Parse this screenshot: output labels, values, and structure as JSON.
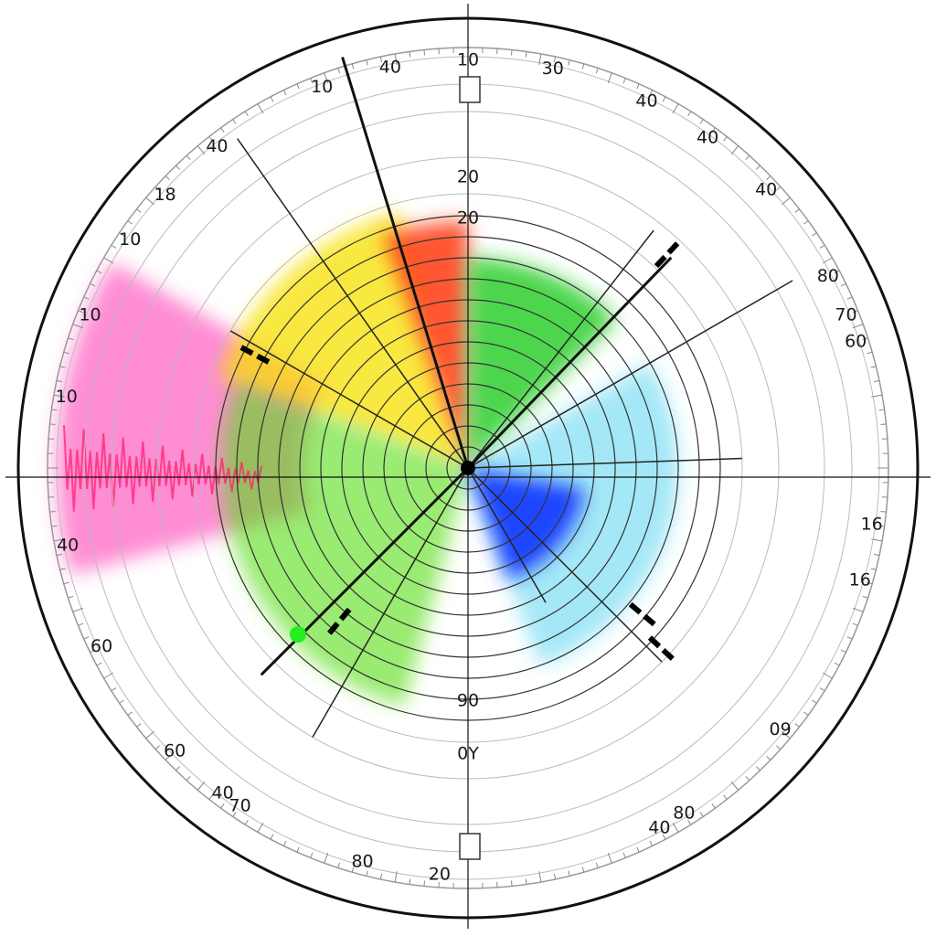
{
  "chart_data": {
    "type": "polar",
    "title": "",
    "outer_labels": [
      {
        "text": "10",
        "angle": 0
      },
      {
        "text": "30",
        "angle": 12
      },
      {
        "text": "40",
        "angle": 26
      },
      {
        "text": "40",
        "angle": 36
      },
      {
        "text": "40",
        "angle": 47
      },
      {
        "text": "80",
        "angle": 62
      },
      {
        "text": "70",
        "angle": 68
      },
      {
        "text": "60",
        "angle": 72
      },
      {
        "text": "16",
        "angle": 98
      },
      {
        "text": "16",
        "angle": 106
      },
      {
        "text": "09",
        "angle": 130
      },
      {
        "text": "80",
        "angle": 148
      },
      {
        "text": "80",
        "angle": 195
      },
      {
        "text": "20",
        "angle": 184
      },
      {
        "text": "40",
        "angle": 217
      },
      {
        "text": "60",
        "angle": 244
      },
      {
        "text": "40",
        "angle": 259
      },
      {
        "text": "10",
        "angle": 280
      },
      {
        "text": "10",
        "angle": 292
      },
      {
        "text": "10",
        "angle": 304
      },
      {
        "text": "18",
        "angle": 312
      },
      {
        "text": "40",
        "angle": 322
      },
      {
        "text": "10",
        "angle": 339
      },
      {
        "text": "40",
        "angle": 349
      },
      {
        "text": "70",
        "angle": 214
      },
      {
        "text": "60",
        "angle": 226
      },
      {
        "text": "40",
        "angle": 152
      }
    ],
    "inner_labels": [
      {
        "text": "20",
        "r": 318,
        "angle": 0
      },
      {
        "text": "20",
        "r": 273,
        "angle": 0
      },
      {
        "text": "90",
        "r": 255,
        "angle": 180
      },
      {
        "text": "0Y",
        "r": 313,
        "angle": 180
      }
    ],
    "ring_count": 12,
    "spectrum": [
      {
        "name": "magenta",
        "color": "#ff2fb0",
        "start": 255,
        "end": 300
      },
      {
        "name": "yellow",
        "color": "#f7e000",
        "start": 290,
        "end": 345
      },
      {
        "name": "red",
        "color": "#ff3a10",
        "start": 340,
        "end": 360
      },
      {
        "name": "green",
        "color": "#22cc22",
        "start": 0,
        "end": 45
      },
      {
        "name": "green-lower",
        "color": "#55dd11",
        "start": 195,
        "end": 290
      },
      {
        "name": "cyan",
        "color": "#33ccee",
        "start": 60,
        "end": 160
      },
      {
        "name": "blue",
        "color": "#1133ff",
        "start": 100,
        "end": 160
      }
    ],
    "colors": {
      "frame": "#111111",
      "grid": "#333333",
      "tick": "#888888"
    }
  }
}
